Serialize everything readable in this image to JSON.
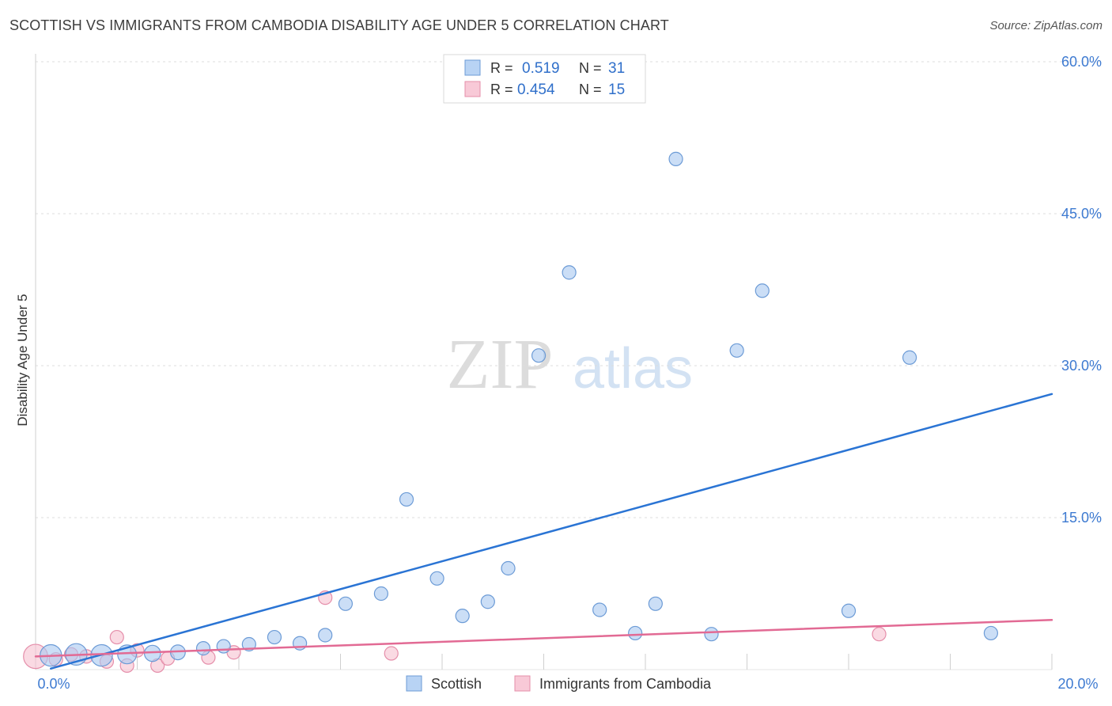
{
  "header": {
    "title": "SCOTTISH VS IMMIGRANTS FROM CAMBODIA DISABILITY AGE UNDER 5 CORRELATION CHART",
    "source": "Source: ZipAtlas.com"
  },
  "watermark": {
    "zip": "ZIP",
    "atlas": "atlas"
  },
  "legend_box": {
    "rows": [
      {
        "r_label": "R =",
        "r_value": "0.519",
        "n_label": "N =",
        "n_value": "31"
      },
      {
        "r_label": "R =",
        "r_value": "0.454",
        "n_label": "N =",
        "n_value": "15"
      }
    ]
  },
  "chart_data": {
    "type": "scatter",
    "title": "SCOTTISH VS IMMIGRANTS FROM CAMBODIA DISABILITY AGE UNDER 5 CORRELATION CHART",
    "xlabel": "",
    "ylabel": "Disability Age Under 5",
    "xlim": [
      0,
      20
    ],
    "ylim": [
      0,
      60
    ],
    "x_tick_labels": [
      "0.0%",
      "20.0%"
    ],
    "y_ticks": [
      15,
      30,
      45,
      60
    ],
    "y_tick_labels": [
      "15.0%",
      "30.0%",
      "45.0%",
      "60.0%"
    ],
    "grid": true,
    "legend_position": "bottom-center",
    "series": [
      {
        "name": "Scottish",
        "color": "#a9c8f0",
        "stroke": "#6c9bd6",
        "line_color": "#2a74d4",
        "R": 0.519,
        "N": 31,
        "trend": {
          "x": [
            0.3,
            20.0
          ],
          "y": [
            0.1,
            27.2
          ]
        },
        "points": [
          {
            "x": 0.3,
            "y": 1.4,
            "s": 1.6
          },
          {
            "x": 0.8,
            "y": 1.5,
            "s": 1.6
          },
          {
            "x": 1.3,
            "y": 1.4,
            "s": 1.6
          },
          {
            "x": 1.8,
            "y": 1.5,
            "s": 1.4
          },
          {
            "x": 2.3,
            "y": 1.6,
            "s": 1.2
          },
          {
            "x": 2.8,
            "y": 1.7,
            "s": 1.1
          },
          {
            "x": 3.3,
            "y": 2.1,
            "s": 1
          },
          {
            "x": 3.7,
            "y": 2.3,
            "s": 1
          },
          {
            "x": 4.2,
            "y": 2.5,
            "s": 1
          },
          {
            "x": 4.7,
            "y": 3.2,
            "s": 1
          },
          {
            "x": 5.2,
            "y": 2.6,
            "s": 1
          },
          {
            "x": 5.7,
            "y": 3.4,
            "s": 1
          },
          {
            "x": 6.1,
            "y": 6.5,
            "s": 1
          },
          {
            "x": 6.8,
            "y": 7.5,
            "s": 1
          },
          {
            "x": 7.3,
            "y": 16.8,
            "s": 1
          },
          {
            "x": 7.9,
            "y": 9.0,
            "s": 1
          },
          {
            "x": 8.4,
            "y": 5.3,
            "s": 1
          },
          {
            "x": 8.9,
            "y": 6.7,
            "s": 1
          },
          {
            "x": 9.3,
            "y": 10.0,
            "s": 1
          },
          {
            "x": 9.9,
            "y": 31.0,
            "s": 1
          },
          {
            "x": 10.5,
            "y": 39.2,
            "s": 1
          },
          {
            "x": 11.1,
            "y": 5.9,
            "s": 1
          },
          {
            "x": 11.8,
            "y": 3.6,
            "s": 1
          },
          {
            "x": 12.2,
            "y": 6.5,
            "s": 1
          },
          {
            "x": 12.6,
            "y": 50.4,
            "s": 1
          },
          {
            "x": 13.3,
            "y": 3.5,
            "s": 1
          },
          {
            "x": 13.8,
            "y": 31.5,
            "s": 1
          },
          {
            "x": 14.3,
            "y": 37.4,
            "s": 1
          },
          {
            "x": 16.0,
            "y": 5.8,
            "s": 1
          },
          {
            "x": 17.2,
            "y": 30.8,
            "s": 1
          },
          {
            "x": 18.8,
            "y": 3.6,
            "s": 1
          }
        ]
      },
      {
        "name": "Immigrants from Cambodia",
        "color": "#f6c1d1",
        "stroke": "#e58eaa",
        "line_color": "#e26a94",
        "R": 0.454,
        "N": 15,
        "trend": {
          "x": [
            0.0,
            20.0
          ],
          "y": [
            1.3,
            4.9
          ]
        },
        "points": [
          {
            "x": 0.0,
            "y": 1.3,
            "s": 1.8
          },
          {
            "x": 0.4,
            "y": 1.0,
            "s": 1
          },
          {
            "x": 0.7,
            "y": 1.5,
            "s": 1
          },
          {
            "x": 1.0,
            "y": 1.3,
            "s": 1
          },
          {
            "x": 1.4,
            "y": 0.8,
            "s": 1
          },
          {
            "x": 1.6,
            "y": 3.2,
            "s": 1
          },
          {
            "x": 1.8,
            "y": 0.4,
            "s": 1
          },
          {
            "x": 2.0,
            "y": 1.9,
            "s": 1
          },
          {
            "x": 2.4,
            "y": 0.4,
            "s": 1
          },
          {
            "x": 2.6,
            "y": 1.1,
            "s": 1
          },
          {
            "x": 3.4,
            "y": 1.2,
            "s": 1
          },
          {
            "x": 3.9,
            "y": 1.7,
            "s": 1
          },
          {
            "x": 5.7,
            "y": 7.1,
            "s": 1
          },
          {
            "x": 7.0,
            "y": 1.6,
            "s": 1
          },
          {
            "x": 16.6,
            "y": 3.5,
            "s": 1
          }
        ]
      }
    ]
  }
}
